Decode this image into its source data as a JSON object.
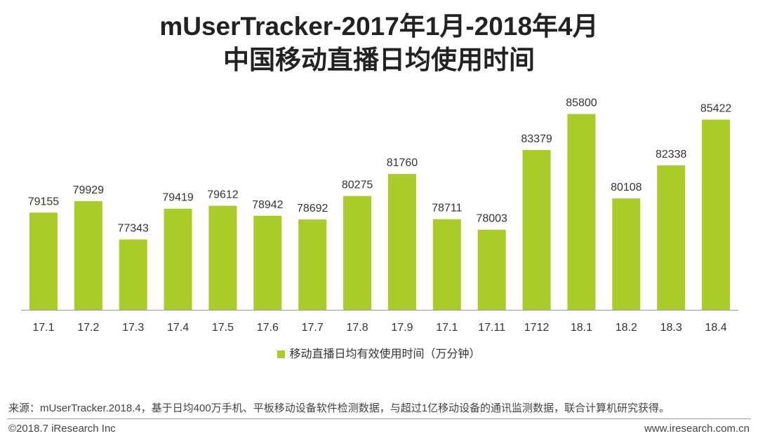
{
  "title_line1": "mUserTracker-2017年1月-2018年4月",
  "title_line2": "中国移动直播日均使用时间",
  "chart_data": {
    "type": "bar",
    "title": "mUserTracker-2017年1月-2018年4月 中国移动直播日均使用时间",
    "categories": [
      "17.1",
      "17.2",
      "17.3",
      "17.4",
      "17.5",
      "17.6",
      "17.7",
      "17.8",
      "17.9",
      "17.1",
      "17.11",
      "1712",
      "18.1",
      "18.2",
      "18.3",
      "18.4"
    ],
    "series": [
      {
        "name": "移动直播日均有效使用时间（万分钟）",
        "values": [
          79155,
          79929,
          77343,
          79419,
          79612,
          78942,
          78692,
          80275,
          81760,
          78711,
          78003,
          83379,
          85800,
          80108,
          82338,
          85422
        ],
        "color": "#a9cc2b"
      }
    ],
    "xlabel": "",
    "ylabel": "",
    "ylim": [
      72600,
      86400
    ],
    "grid": false,
    "legend_position": "bottom"
  },
  "legend_label": "移动直播日均有效使用时间（万分钟）",
  "footer": {
    "source": "来源：mUserTracker.2018.4，基于日均400万手机、平板移动设备软件检测数据，与超过1亿移动设备的通讯监测数据，联合计算机研究获得。",
    "copyright": "©2018.7 iResearch Inc",
    "website": "www.iresearch.com.cn"
  }
}
